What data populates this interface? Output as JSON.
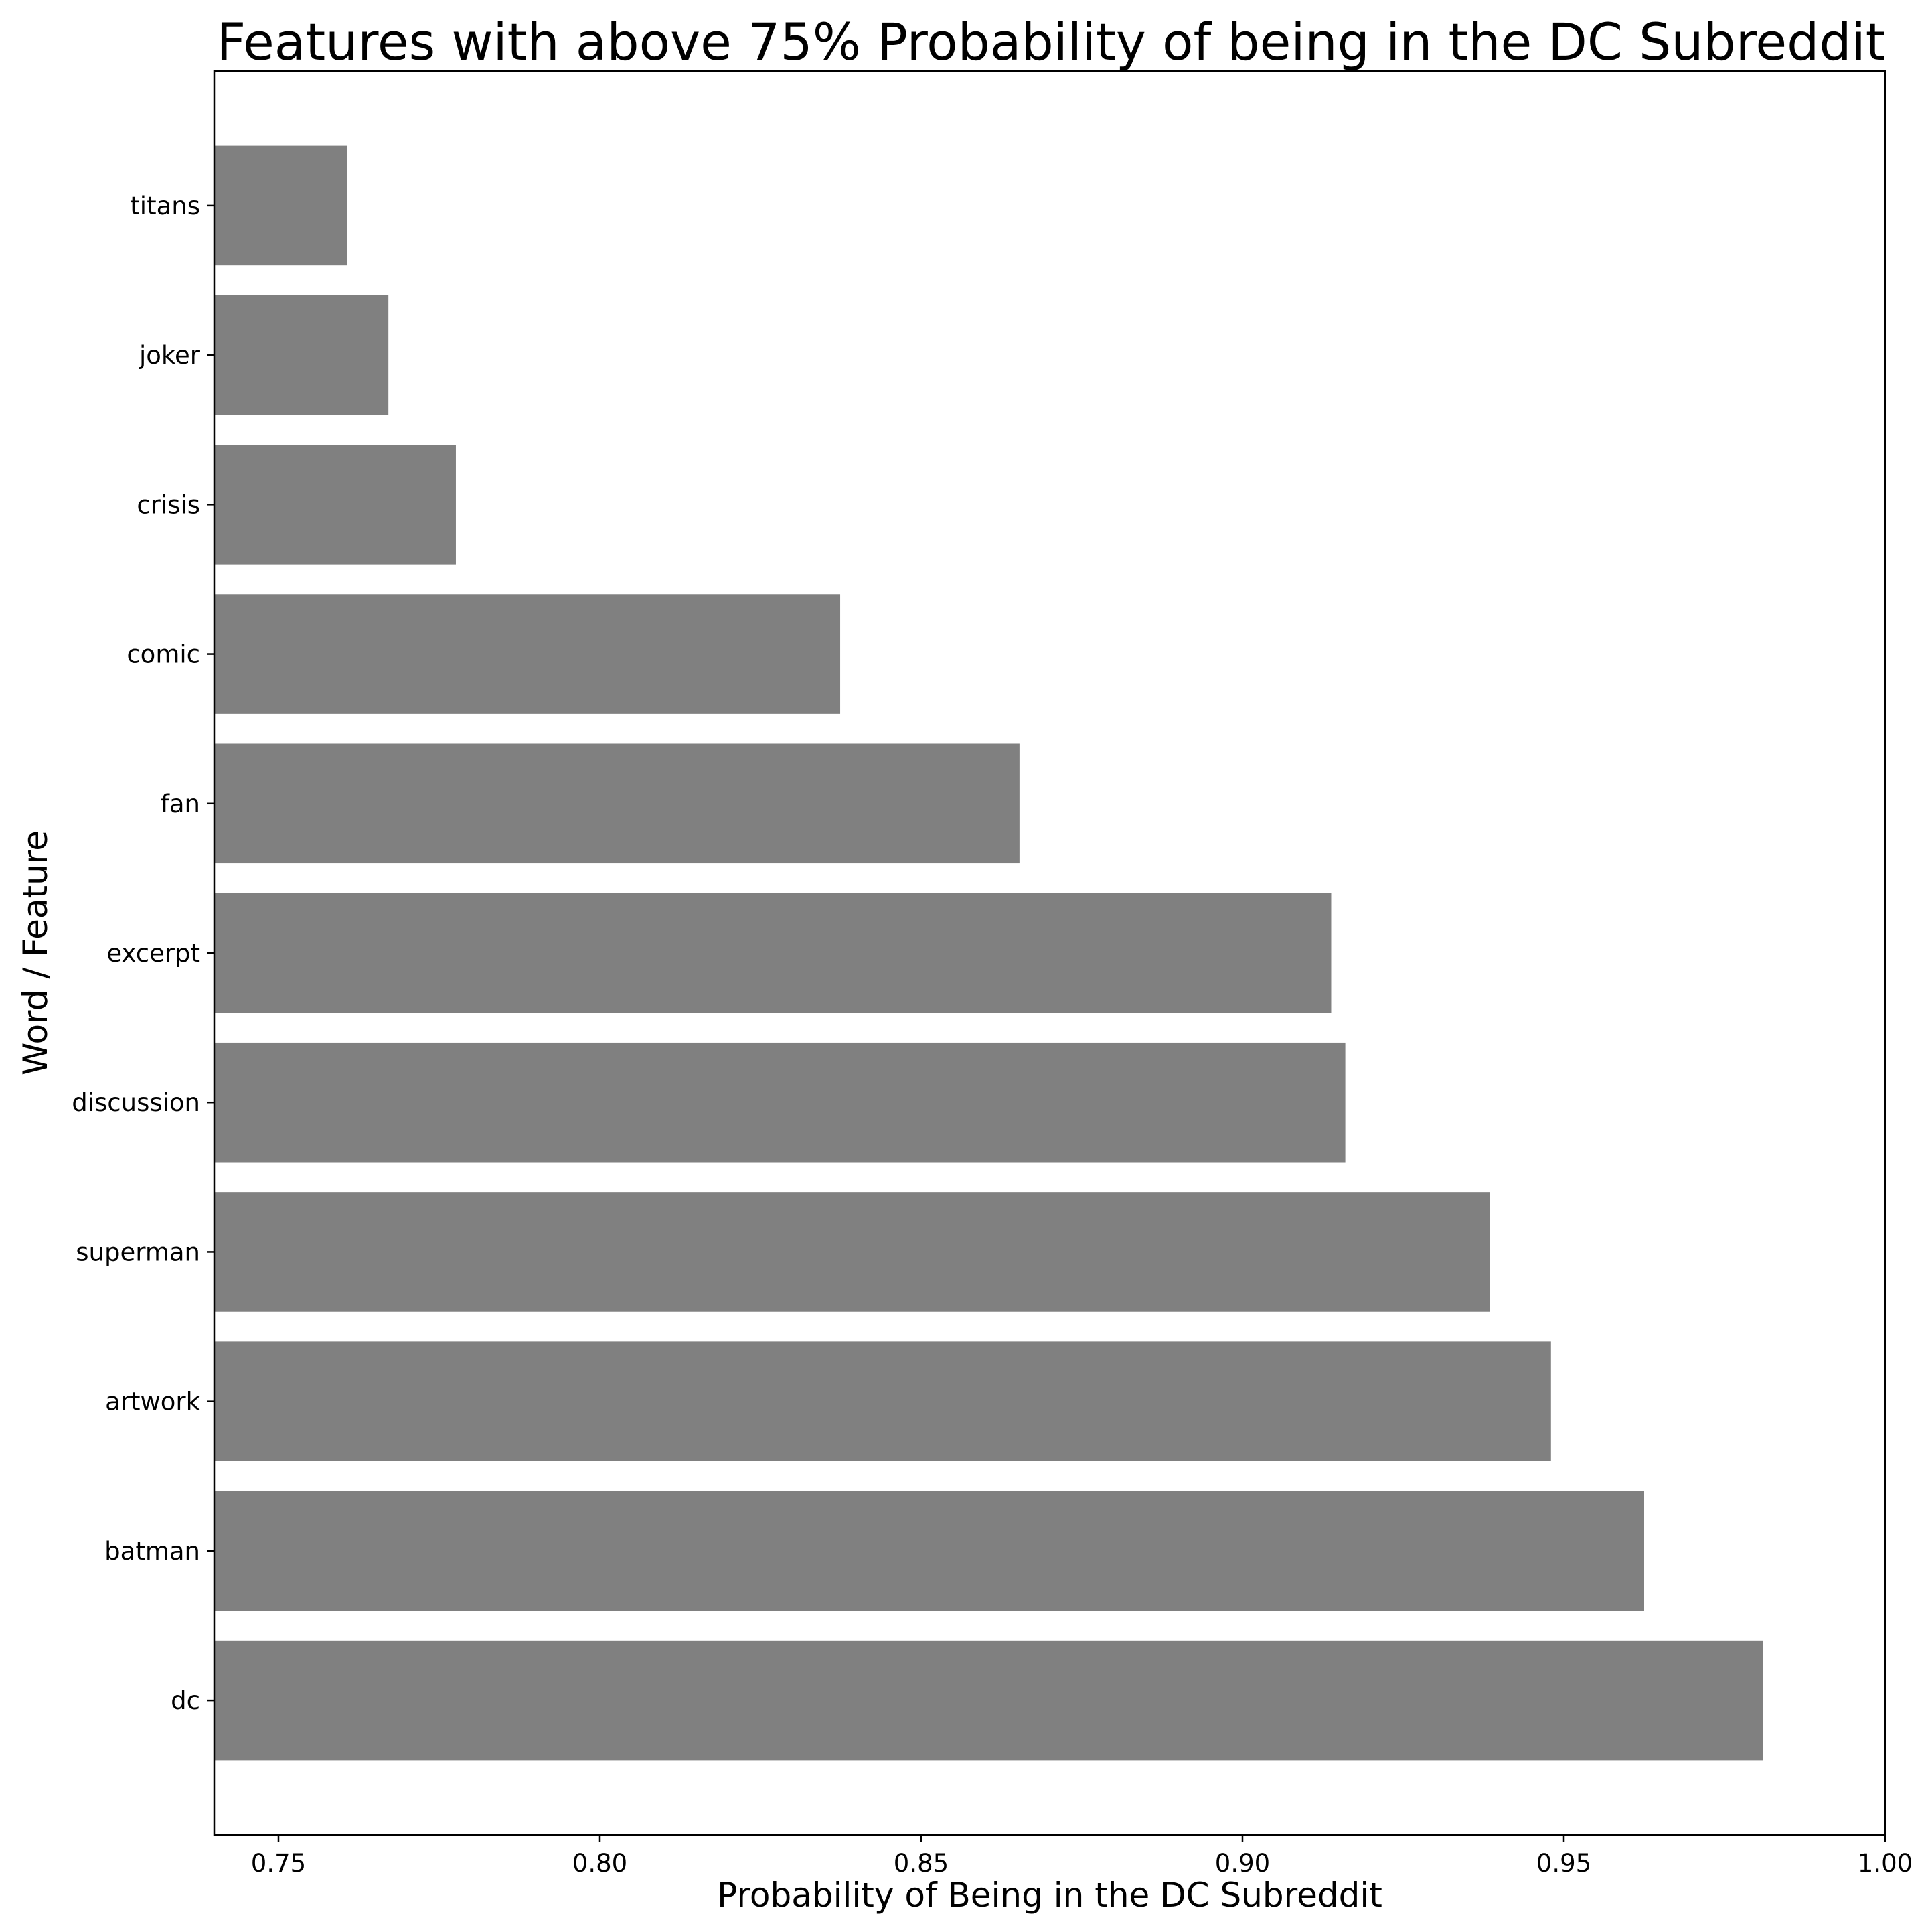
{
  "chart_data": {
    "type": "bar",
    "orientation": "horizontal",
    "title": "Features with above 75% Probability of being in the DC Subreddit",
    "xlabel": "Probability of Being in the DC Subreddit",
    "ylabel": "Word / Feature",
    "categories": [
      "dc",
      "batman",
      "artwork",
      "superman",
      "discussion",
      "excerpt",
      "fan",
      "comic",
      "crisis",
      "joker",
      "titans"
    ],
    "values": [
      0.981,
      0.9625,
      0.948,
      0.9385,
      0.916,
      0.9138,
      0.8653,
      0.8374,
      0.7776,
      0.7671,
      0.7607
    ],
    "xlim": [
      0.74,
      1.0
    ],
    "xticks": [
      "0.75",
      "0.80",
      "0.85",
      "0.90",
      "0.95",
      "1.00"
    ],
    "bar_color": "#808080",
    "grid": false
  }
}
